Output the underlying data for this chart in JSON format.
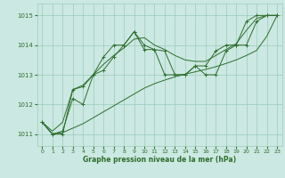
{
  "hours": [
    0,
    1,
    2,
    3,
    4,
    5,
    6,
    7,
    8,
    9,
    10,
    11,
    12,
    13,
    14,
    15,
    16,
    17,
    18,
    19,
    20,
    21,
    22,
    23
  ],
  "jagged1": [
    1011.4,
    1011.0,
    1011.0,
    1012.5,
    1012.6,
    1013.0,
    1013.6,
    1014.0,
    1014.0,
    1014.45,
    1014.0,
    1013.85,
    1013.0,
    1013.0,
    1013.0,
    1013.3,
    1013.0,
    1013.0,
    1013.8,
    1014.0,
    1014.0,
    1014.8,
    1015.0,
    1015.0
  ],
  "jagged2": [
    1011.4,
    1011.0,
    1011.1,
    1012.2,
    1012.0,
    1013.0,
    1013.15,
    1013.6,
    1014.0,
    1014.45,
    1013.85,
    1013.85,
    1013.8,
    1013.0,
    1013.0,
    1013.3,
    1013.3,
    1013.8,
    1014.0,
    1014.0,
    1014.8,
    1015.0,
    1015.0,
    1015.0
  ],
  "smooth_low": [
    1011.4,
    1011.0,
    1011.05,
    1011.2,
    1011.35,
    1011.55,
    1011.75,
    1011.95,
    1012.15,
    1012.35,
    1012.55,
    1012.7,
    1012.82,
    1012.93,
    1013.02,
    1013.1,
    1013.18,
    1013.27,
    1013.38,
    1013.5,
    1013.65,
    1013.82,
    1014.3,
    1015.0
  ],
  "smooth_high": [
    1011.4,
    1011.1,
    1011.4,
    1012.5,
    1012.65,
    1013.0,
    1013.35,
    1013.65,
    1013.9,
    1014.2,
    1014.25,
    1014.0,
    1013.85,
    1013.65,
    1013.5,
    1013.45,
    1013.45,
    1013.65,
    1013.85,
    1014.05,
    1014.5,
    1014.9,
    1015.0,
    1015.0
  ],
  "bg_color": "#cce8e2",
  "grid_color": "#99ccbb",
  "line_color": "#2d6e2d",
  "yticks": [
    1011,
    1012,
    1013,
    1014,
    1015
  ],
  "xticks": [
    0,
    1,
    2,
    3,
    4,
    5,
    6,
    7,
    8,
    9,
    10,
    11,
    12,
    13,
    14,
    15,
    16,
    17,
    18,
    19,
    20,
    21,
    22,
    23
  ],
  "xlabel": "Graphe pression niveau de la mer (hPa)",
  "ylim": [
    1010.6,
    1015.4
  ],
  "xlim": [
    -0.5,
    23.5
  ]
}
